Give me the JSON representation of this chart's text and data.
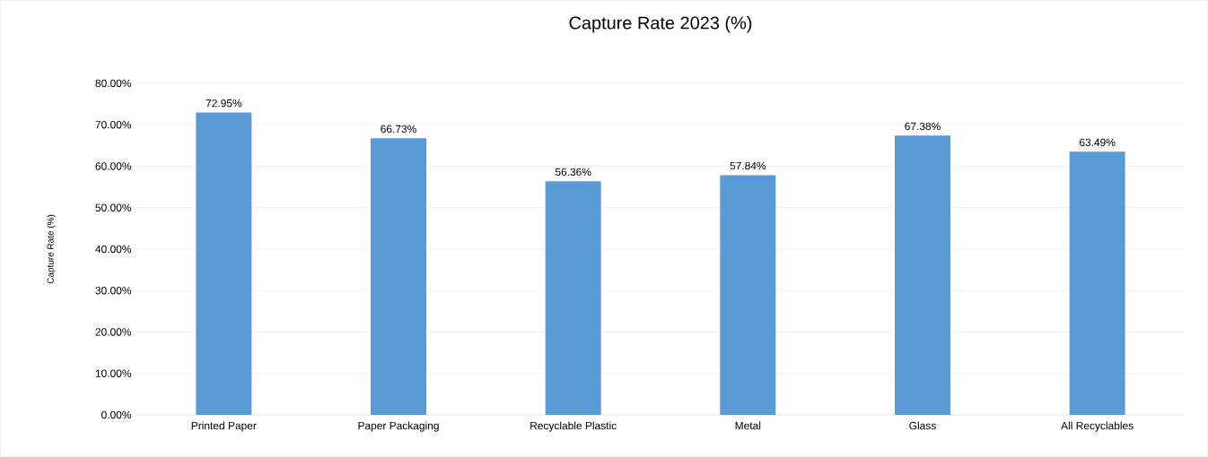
{
  "chart_data": {
    "type": "bar",
    "title": "Capture Rate 2023 (%)",
    "ylabel": "Capture Rate (%)",
    "categories": [
      "Printed Paper",
      "Paper Packaging",
      "Recyclable Plastic",
      "Metal",
      "Glass",
      "All Recyclables"
    ],
    "values": [
      72.95,
      66.73,
      56.36,
      57.84,
      67.38,
      63.49
    ],
    "value_labels": [
      "72.95%",
      "66.73%",
      "56.36%",
      "57.84%",
      "67.38%",
      "63.49%"
    ],
    "color": "#5b9bd5",
    "ylim": [
      0,
      80
    ],
    "yticks": [
      {
        "value": 0,
        "label": "0.00%"
      },
      {
        "value": 10,
        "label": "10.00%"
      },
      {
        "value": 20,
        "label": "20.00%"
      },
      {
        "value": 30,
        "label": "30.00%"
      },
      {
        "value": 40,
        "label": "40.00%"
      },
      {
        "value": 50,
        "label": "50.00%"
      },
      {
        "value": 60,
        "label": "60.00%"
      },
      {
        "value": 70,
        "label": "70.00%"
      },
      {
        "value": 80,
        "label": "80.00%"
      }
    ],
    "grid": "y"
  }
}
